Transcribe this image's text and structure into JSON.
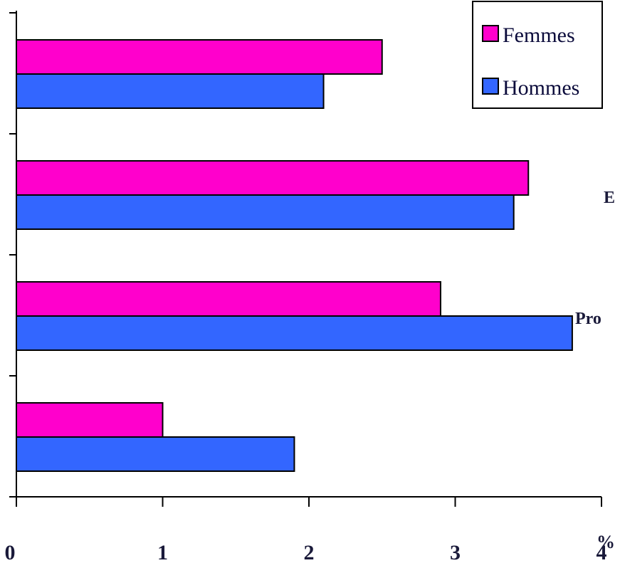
{
  "chart_data": {
    "type": "bar",
    "orientation": "horizontal",
    "categories": [
      "",
      "E",
      "Pro",
      ""
    ],
    "series": [
      {
        "name": "Femmes",
        "color": "#ff00cc",
        "values": [
          2.5,
          3.5,
          2.9,
          1.0
        ]
      },
      {
        "name": "Hommes",
        "color": "#3366ff",
        "values": [
          2.1,
          3.4,
          3.8,
          1.9
        ]
      }
    ],
    "x_ticks": [
      "0",
      "1",
      "2",
      "3",
      "4"
    ],
    "xlim": [
      0,
      4
    ],
    "unit": "%",
    "legend_position": "top-right",
    "grid": false
  }
}
